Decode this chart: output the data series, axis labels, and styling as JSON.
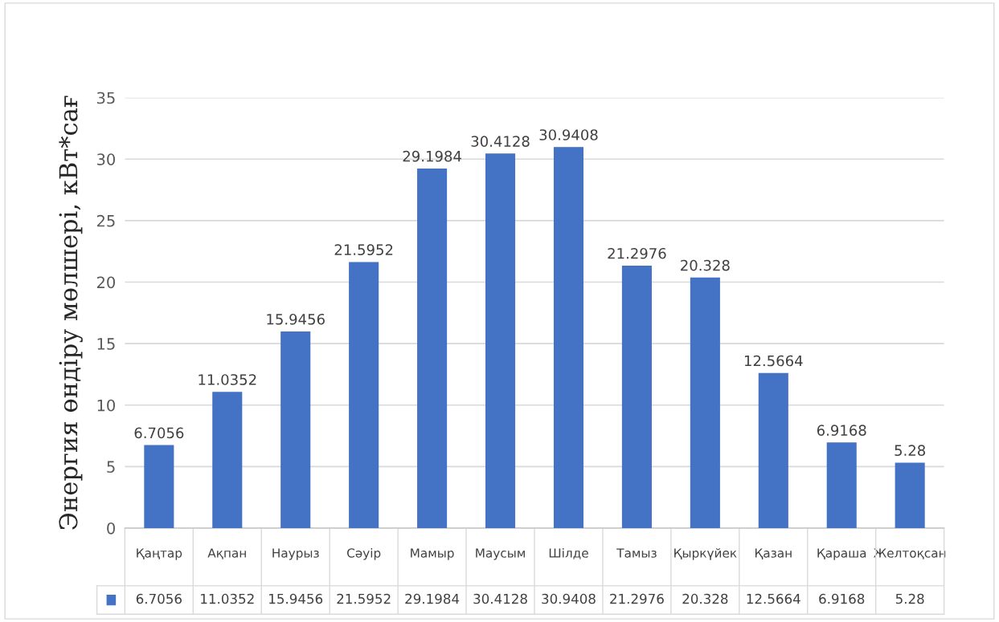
{
  "chart_data": {
    "type": "bar",
    "ylabel": "Энергия өндіру мөлшері, кВт*сағ",
    "categories": [
      "Қаңтар",
      "Ақпан",
      "Наурыз",
      "Сәуір",
      "Мамыр",
      "Маусым",
      "Шілде",
      "Тамыз",
      "Қыркүйек",
      "Қазан",
      "Қараша",
      "Желтоқсан"
    ],
    "values": [
      6.7056,
      11.0352,
      15.9456,
      21.5952,
      29.1984,
      30.4128,
      30.9408,
      21.2976,
      20.328,
      12.5664,
      6.9168,
      5.28
    ],
    "value_labels": [
      "6.7056",
      "11.0352",
      "15.9456",
      "21.5952",
      "29.1984",
      "30.4128",
      "30.9408",
      "21.2976",
      "20.328",
      "12.5664",
      "6.9168",
      "5.28"
    ],
    "color": "#4472c4",
    "ylim": [
      0,
      35
    ],
    "yticks": [
      0,
      5,
      10,
      15,
      20,
      25,
      30,
      35
    ],
    "annotations": [
      "6.7056",
      "11.0352",
      "15.9456",
      "21.5952",
      "29.1984",
      "30.4128",
      "30.9408",
      "21.2976",
      "20.328",
      "12.5664",
      "6.9168",
      "5.28"
    ],
    "grid": "y",
    "legend": false
  }
}
